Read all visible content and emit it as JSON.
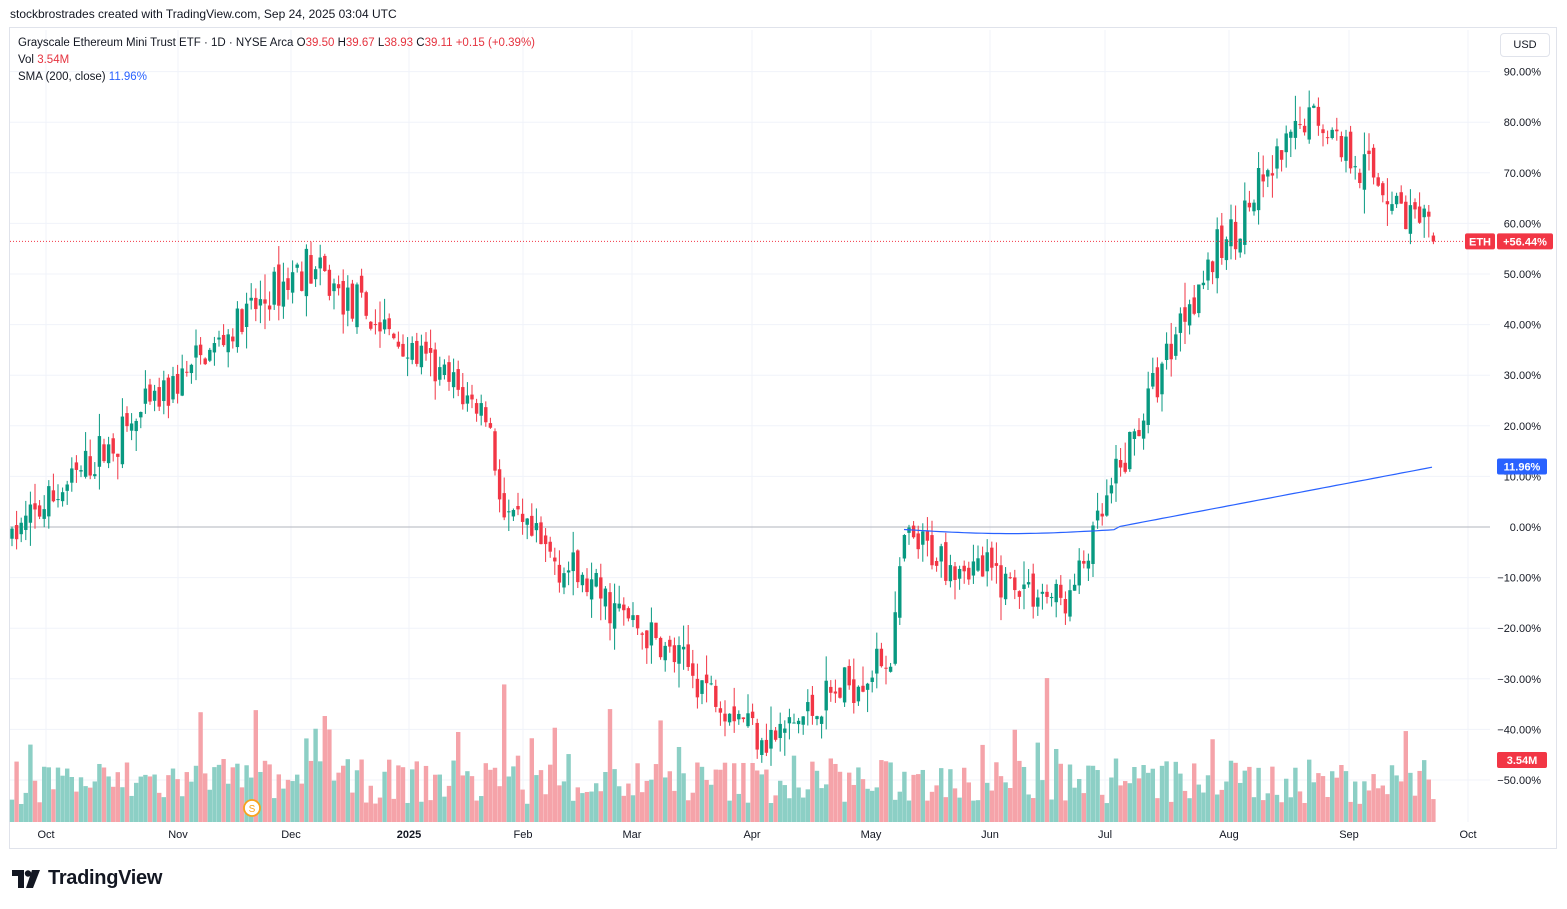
{
  "header": {
    "credit": "stockbrostrades created with TradingView.com, Sep 24, 2025 03:04 UTC"
  },
  "legend": {
    "symbol": "Grayscale Ethereum Mini Trust ETF · 1D · NYSE Arca",
    "o_label": "O",
    "o": "39.50",
    "h_label": "H",
    "h": "39.67",
    "l_label": "L",
    "l": "38.93",
    "c_label": "C",
    "c": "39.11",
    "change": "+0.15 (+0.39%)",
    "vol_label": "Vol",
    "vol": "3.54M",
    "sma_label": "SMA (200, close)",
    "sma": "11.96%"
  },
  "currency": "USD",
  "price_scale": {
    "labels": [
      "90.00%",
      "80.00%",
      "70.00%",
      "60.00%",
      "50.00%",
      "40.00%",
      "30.00%",
      "20.00%",
      "10.00%",
      "0.00%",
      "−10.00%",
      "−20.00%",
      "−30.00%",
      "−40.00%",
      "−50.00%"
    ],
    "current_symbol_tag": "ETH",
    "current_value_tag": "+56.44%",
    "sma_tag": "11.96%",
    "volume_tag": "3.54M"
  },
  "time_axis": {
    "labels": [
      "Oct",
      "Nov",
      "Dec",
      "2025",
      "Feb",
      "Mar",
      "Apr",
      "May",
      "Jun",
      "Jul",
      "Aug",
      "Sep",
      "Oct"
    ]
  },
  "event_marker": "S",
  "brand": "TradingView",
  "colors": {
    "up": "#089981",
    "down": "#f23645",
    "sma": "#2962ff",
    "vol_up": "#8ccfc5",
    "vol_down": "#f5a3a9",
    "grid": "#f0f3fa",
    "zero_line": "#b2b5be"
  },
  "chart_data": {
    "type": "candlestick",
    "y_unit": "percent change",
    "ylim": [
      -55,
      95
    ],
    "key_points": [
      {
        "date": "2024-10",
        "value": -2
      },
      {
        "date": "2024-12-13",
        "value": 52
      },
      {
        "date": "2025-01-28",
        "value": 22
      },
      {
        "date": "2025-02-01",
        "value": 2
      },
      {
        "date": "2025-04-09",
        "value": -42
      },
      {
        "date": "2025-05-09",
        "value": -25
      },
      {
        "date": "2025-05-12",
        "value": -3
      },
      {
        "date": "2025-06-22",
        "value": -15
      },
      {
        "date": "2025-07-22",
        "value": 45
      },
      {
        "date": "2025-08-22",
        "value": 82
      },
      {
        "date": "2025-09-22",
        "value": 56.44
      }
    ],
    "sma_200_last": 11.96,
    "volume_last": "3.54M"
  }
}
